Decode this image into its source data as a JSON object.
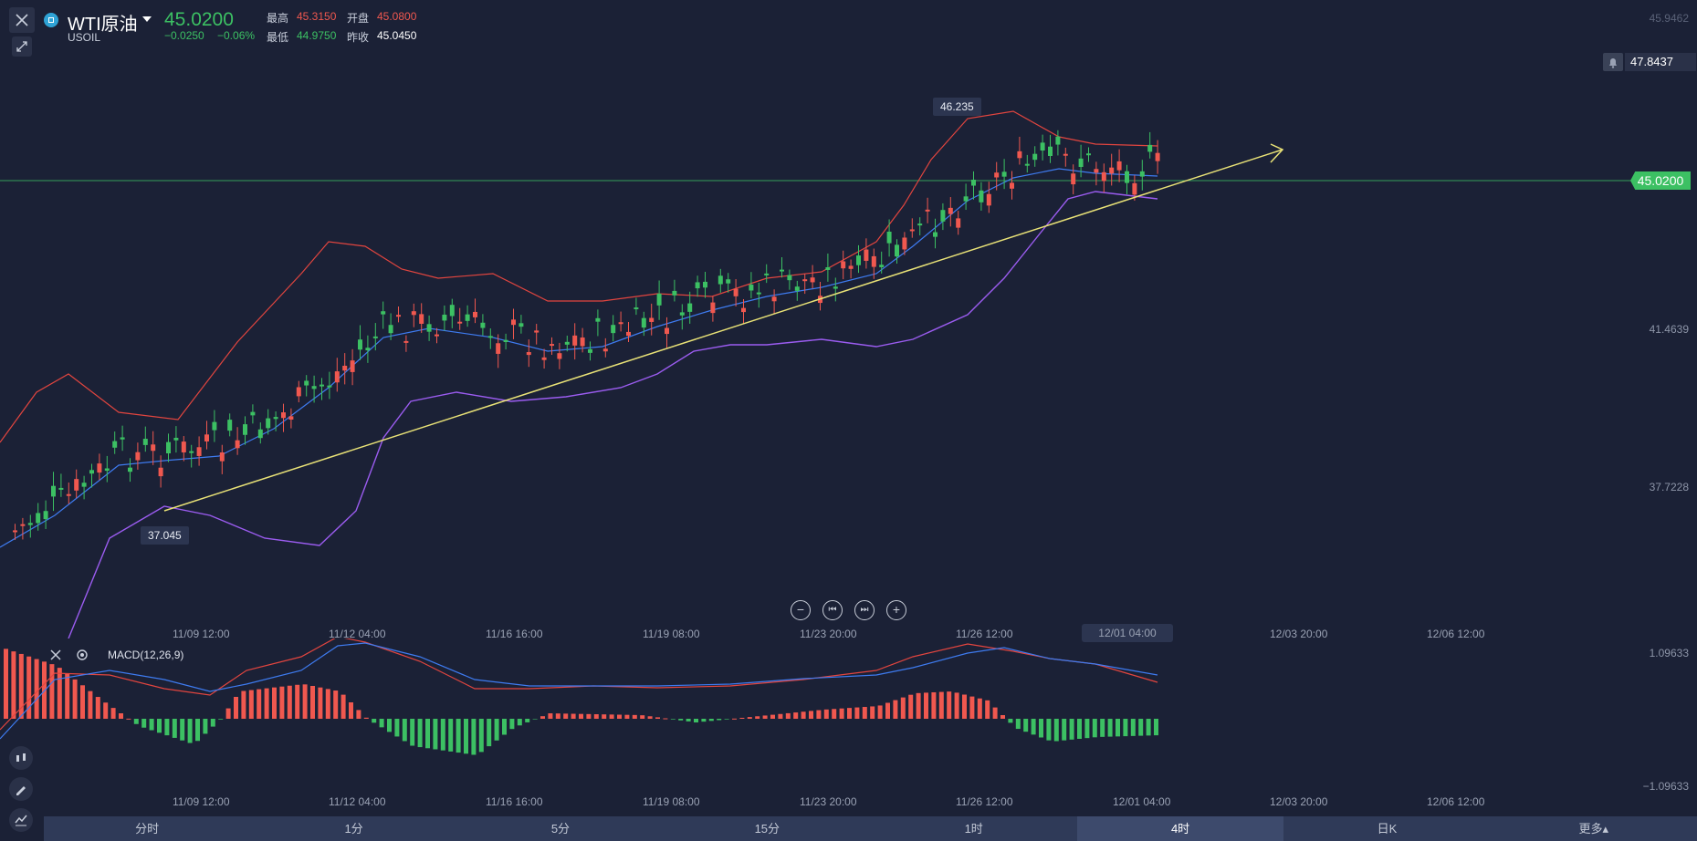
{
  "header": {
    "title": "WTI原油",
    "symbol": "USOIL",
    "price": "45.0200",
    "change": "−0.0250",
    "change_pct": "−0.06%",
    "high_label": "最高",
    "high": "45.3150",
    "open_label": "开盘",
    "open": "45.0800",
    "low_label": "最低",
    "low": "44.9750",
    "prev_label": "昨收",
    "prev": "45.0450"
  },
  "price_axis": {
    "top": "45.9462",
    "alert": "47.8437",
    "current": "45.0200",
    "mid": "41.4639",
    "low": "37.7228"
  },
  "annotations": {
    "high": "46.235",
    "low": "37.045"
  },
  "time_labels": [
    "11/09 12:00",
    "11/12 04:00",
    "11/16 16:00",
    "11/19 08:00",
    "11/23 20:00",
    "11/26 12:00",
    "12/01 04:00",
    "12/03 20:00",
    "12/06 12:00"
  ],
  "time_labels_main": [
    "11/09 12:00",
    "11/12 04:00",
    "11/16 16:00",
    "11/19 08:00",
    "11/23 20:00",
    "11/26 12:00",
    "12/03 20:00",
    "12/06 12:00"
  ],
  "indicator": {
    "name": "MACD(12,26,9)",
    "axis_top": "1.09633",
    "axis_bottom": "−1.09633"
  },
  "tabs": [
    "分时",
    "1分",
    "5分",
    "15分",
    "1时",
    "4时",
    "日K",
    "更多▴"
  ],
  "active_tab": "4时",
  "colors": {
    "up": "#f0584f",
    "down": "#3cc063",
    "bg": "#1b2136",
    "mid_band": "#3e7bf0",
    "upper_band": "#e2453f",
    "lower_band": "#9b5cf0",
    "trend": "#e9e277"
  },
  "icons": [
    "close-icon",
    "collapse-icon",
    "alert-bell-icon",
    "zoom-out-icon",
    "scroll-left-icon",
    "scroll-right-icon",
    "zoom-in-icon",
    "indicator-close-icon",
    "indicator-settings-icon",
    "candle-type-icon",
    "draw-pen-icon",
    "indicator-icon"
  ]
}
